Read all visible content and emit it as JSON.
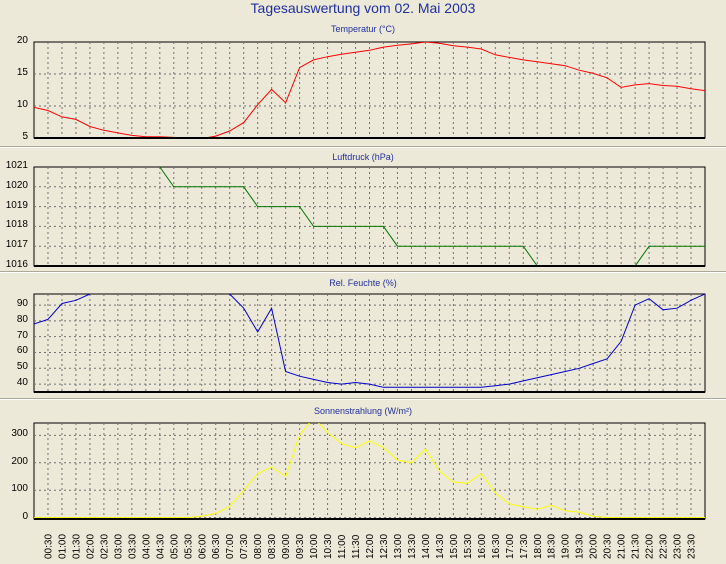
{
  "title": "Tagesauswertung vom 02. Mai 2003",
  "x_labels": [
    "00:30",
    "01:00",
    "01:30",
    "02:00",
    "02:30",
    "03:00",
    "03:30",
    "04:00",
    "04:30",
    "05:00",
    "05:30",
    "06:00",
    "06:30",
    "07:00",
    "07:30",
    "08:00",
    "08:30",
    "09:00",
    "09:30",
    "10:00",
    "10:30",
    "11:00",
    "11:30",
    "12:00",
    "12:30",
    "13:00",
    "13:30",
    "14:00",
    "14:30",
    "15:00",
    "15:30",
    "16:00",
    "16:30",
    "17:00",
    "17:30",
    "18:00",
    "18:30",
    "19:00",
    "19:30",
    "20:00",
    "20:30",
    "21:00",
    "21:30",
    "22:00",
    "22:30",
    "23:00",
    "23:30"
  ],
  "chart_data": [
    {
      "type": "line",
      "title": "Temperatur (°C)",
      "ylim": [
        5,
        20
      ],
      "yticks": [
        "5",
        "10",
        "15",
        "20"
      ],
      "color": "#ff0000",
      "x": [
        "00:00",
        "00:30",
        "01:00",
        "01:30",
        "02:00",
        "02:30",
        "03:00",
        "03:30",
        "04:00",
        "04:30",
        "05:00",
        "05:30",
        "06:00",
        "06:30",
        "07:00",
        "07:30",
        "08:00",
        "08:30",
        "09:00",
        "09:30",
        "10:00",
        "10:30",
        "11:00",
        "11:30",
        "12:00",
        "12:30",
        "13:00",
        "13:30",
        "14:00",
        "14:30",
        "15:00",
        "15:30",
        "16:00",
        "16:30",
        "17:00",
        "17:30",
        "18:00",
        "18:30",
        "19:00",
        "19:30",
        "20:00",
        "20:30",
        "21:00",
        "21:30",
        "22:00",
        "22:30",
        "23:00",
        "23:30",
        "24:00"
      ],
      "values": [
        9.8,
        9.3,
        8.3,
        7.9,
        6.8,
        6.2,
        5.8,
        5.4,
        5.2,
        5.2,
        5.1,
        4.8,
        4.9,
        5.3,
        6.1,
        7.4,
        10.2,
        12.6,
        10.5,
        16.0,
        17.2,
        17.7,
        18.1,
        18.4,
        18.7,
        19.2,
        19.5,
        19.7,
        20.0,
        19.8,
        19.4,
        19.2,
        18.9,
        18.0,
        17.6,
        17.2,
        16.9,
        16.6,
        16.3,
        15.6,
        15.1,
        14.4,
        12.9,
        13.3,
        13.5,
        13.2,
        13.1,
        12.7,
        12.4
      ]
    },
    {
      "type": "line",
      "title": "Luftdruck (hPa)",
      "ylim": [
        1016,
        1021
      ],
      "yticks": [
        "1016",
        "1017",
        "1018",
        "1019",
        "1020",
        "1021"
      ],
      "color": "#007700",
      "x": [
        "04:00",
        "04:30",
        "05:00",
        "05:30",
        "06:00",
        "06:30",
        "07:00",
        "07:30",
        "08:00",
        "08:30",
        "09:00",
        "09:30",
        "10:00",
        "10:30",
        "11:00",
        "11:30",
        "12:00",
        "12:30",
        "13:00",
        "13:30",
        "14:00",
        "14:30",
        "15:00",
        "15:30",
        "16:00",
        "16:30",
        "17:00",
        "17:30",
        "18:00",
        "18:30",
        "19:00",
        "19:30",
        "20:00",
        "20:30",
        "21:00",
        "21:30",
        "22:00",
        "22:30",
        "23:00",
        "23:30",
        "24:00"
      ],
      "values": [
        1021.6,
        1021.0,
        1020.0,
        1020.0,
        1020.0,
        1020.0,
        1020.0,
        1020.0,
        1019.0,
        1019.0,
        1019.0,
        1019.0,
        1018.0,
        1018.0,
        1018.0,
        1018.0,
        1018.0,
        1018.0,
        1017.0,
        1017.0,
        1017.0,
        1017.0,
        1017.0,
        1017.0,
        1017.0,
        1017.0,
        1017.0,
        1017.0,
        1016.0,
        1016.0,
        1016.0,
        1016.0,
        1016.0,
        1016.0,
        1016.0,
        1016.0,
        1017.0,
        1017.0,
        1017.0,
        1017.0,
        1017.0
      ]
    },
    {
      "type": "line",
      "title": "Rel. Feuchte (%)",
      "ylim": [
        35,
        97
      ],
      "yticks": [
        "40",
        "50",
        "60",
        "70",
        "80",
        "90"
      ],
      "color": "#0000cc",
      "x": [
        "00:00",
        "00:30",
        "01:00",
        "01:30",
        "02:00",
        "02:30",
        "03:00",
        "03:30",
        "04:00",
        "04:30",
        "05:00",
        "05:30",
        "06:00",
        "06:30",
        "07:00",
        "07:30",
        "08:00",
        "08:30",
        "09:00",
        "09:30",
        "10:00",
        "10:30",
        "11:00",
        "11:30",
        "12:00",
        "12:30",
        "13:00",
        "13:30",
        "14:00",
        "14:30",
        "15:00",
        "15:30",
        "16:00",
        "16:30",
        "17:00",
        "17:30",
        "18:00",
        "18:30",
        "19:00",
        "19:30",
        "20:00",
        "20:30",
        "21:00",
        "21:30",
        "22:00",
        "22:30",
        "23:00",
        "23:30",
        "24:00"
      ],
      "values": [
        78,
        81,
        91,
        93,
        97,
        100,
        100,
        100,
        100,
        100,
        100,
        100,
        100,
        100,
        97,
        88,
        73,
        88,
        48,
        45,
        43,
        41,
        40,
        41,
        40,
        38,
        38,
        38,
        38,
        38,
        38,
        38,
        38,
        39,
        40,
        42,
        44,
        46,
        48,
        50,
        53,
        56,
        67,
        90,
        94,
        87,
        88,
        93,
        97
      ]
    },
    {
      "type": "line",
      "title": "Sonnenstrahlung (W/m²)",
      "ylim": [
        -5,
        345
      ],
      "yticks": [
        "0",
        "100",
        "200",
        "300"
      ],
      "color": "#ffff00",
      "x": [
        "00:00",
        "00:30",
        "01:00",
        "01:30",
        "02:00",
        "02:30",
        "03:00",
        "03:30",
        "04:00",
        "04:30",
        "05:00",
        "05:30",
        "06:00",
        "06:30",
        "07:00",
        "07:30",
        "08:00",
        "08:30",
        "09:00",
        "09:30",
        "10:00",
        "10:30",
        "11:00",
        "11:30",
        "12:00",
        "12:30",
        "13:00",
        "13:30",
        "14:00",
        "14:30",
        "15:00",
        "15:30",
        "16:00",
        "16:30",
        "17:00",
        "17:30",
        "18:00",
        "18:30",
        "19:00",
        "19:30",
        "20:00",
        "20:30",
        "21:00",
        "21:30",
        "22:00",
        "22:30",
        "23:00",
        "23:30",
        "24:00"
      ],
      "values": [
        0,
        0,
        0,
        0,
        0,
        0,
        0,
        0,
        0,
        0,
        0,
        0,
        5,
        15,
        40,
        100,
        160,
        185,
        150,
        300,
        365,
        310,
        270,
        255,
        280,
        255,
        210,
        200,
        250,
        170,
        130,
        125,
        160,
        90,
        50,
        40,
        30,
        45,
        25,
        20,
        5,
        0,
        0,
        0,
        0,
        0,
        0,
        0,
        0
      ]
    }
  ]
}
